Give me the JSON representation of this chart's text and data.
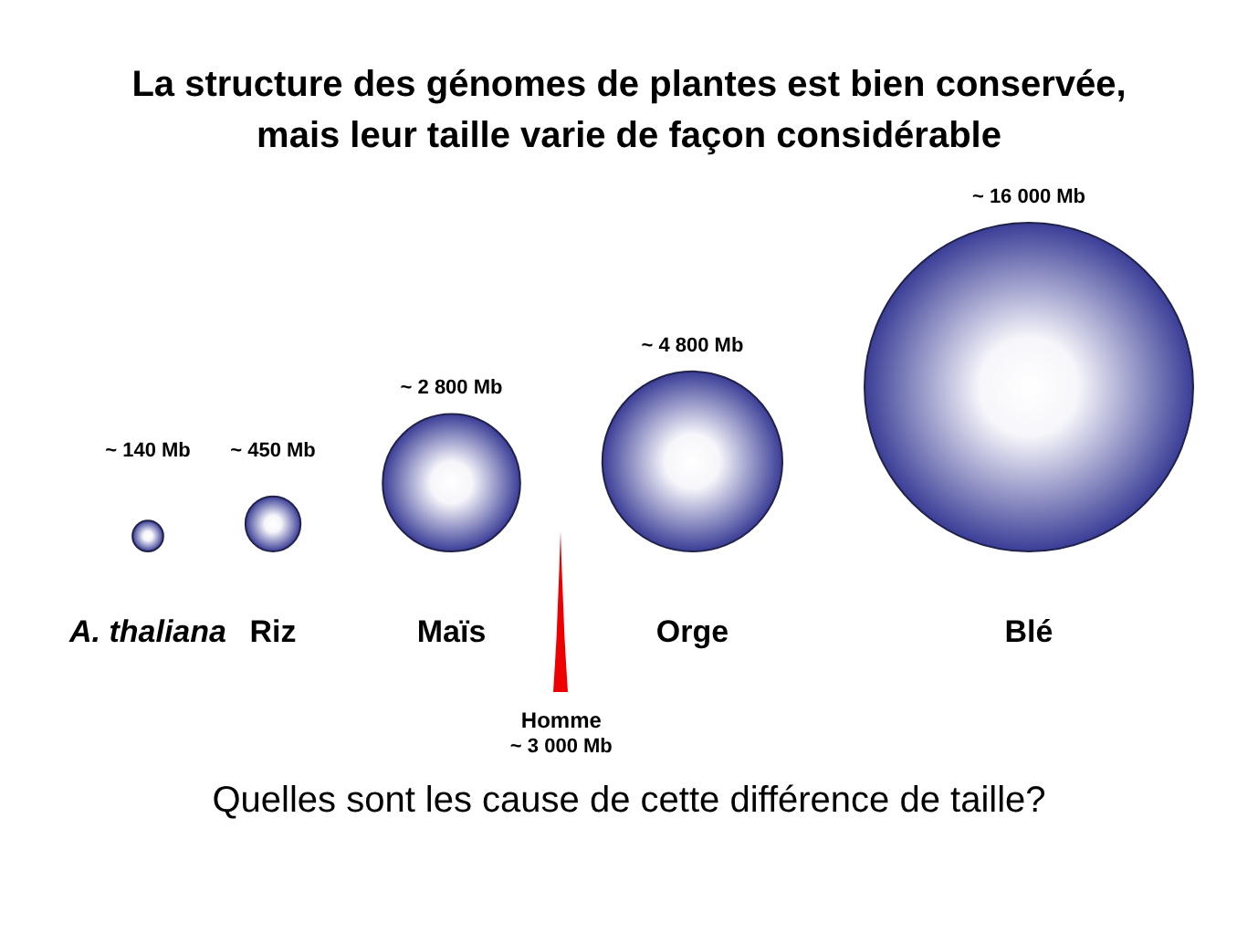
{
  "chart_data": {
    "type": "other",
    "title": "La structure des génomes de plantes est bien conservée,\nmais leur taille varie de façon considérable",
    "categories": [
      "A. thaliana",
      "Riz",
      "Maïs",
      "Orge",
      "Blé"
    ],
    "values": [
      140,
      450,
      2800,
      4800,
      16000
    ],
    "value_labels": [
      "~ 140 Mb",
      "~ 450 Mb",
      "~ 2 800 Mb",
      "~ 4 800 Mb",
      "~ 16 000 Mb"
    ],
    "colors": [
      "#3a3d96",
      "#3a3d96",
      "#3a3d96",
      "#3a3d96",
      "#3a3d96"
    ],
    "annotations": [
      "Homme\n~ 3 000 Mb",
      "Quelles sont les cause de cette différence de taille?"
    ]
  }
}
